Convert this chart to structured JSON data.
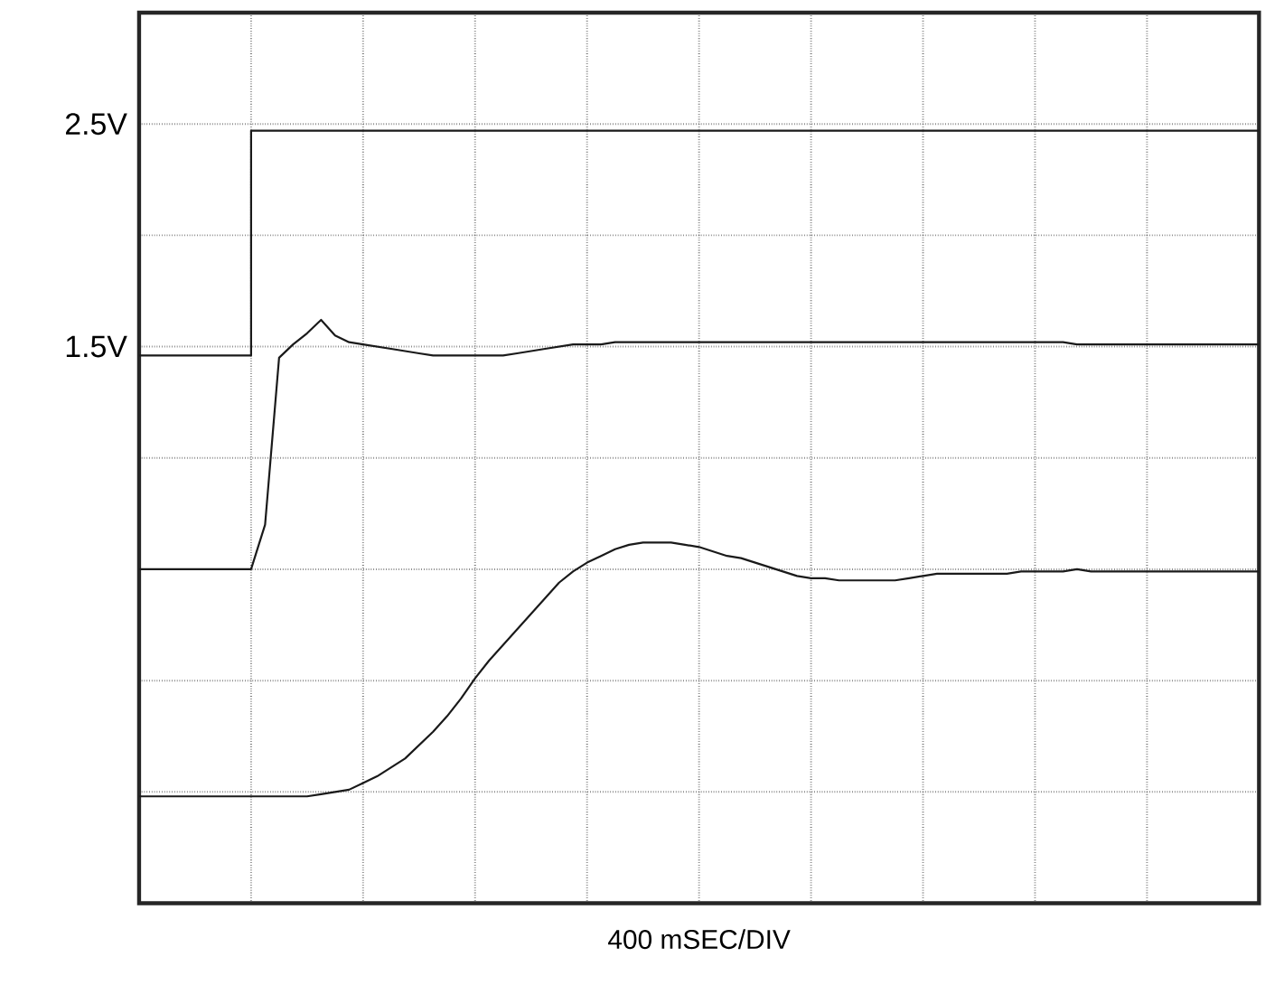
{
  "chart_data": {
    "type": "line",
    "xlabel": "400 mSEC/DIV",
    "ylim": [
      -1,
      3
    ],
    "categories": [
      null,
      null,
      null,
      null,
      null,
      null,
      null,
      null,
      null,
      null,
      null,
      null,
      null,
      null,
      null,
      null,
      null,
      null,
      null,
      null,
      null,
      null,
      null,
      null,
      null,
      null,
      null,
      null,
      null,
      null,
      null,
      null,
      null,
      null,
      null,
      null,
      null,
      null,
      null,
      null,
      null,
      null,
      null,
      null,
      null,
      null,
      null,
      null,
      null,
      null,
      null,
      null,
      null,
      null,
      null,
      null,
      null,
      null,
      null,
      null,
      null,
      null,
      null,
      null,
      null,
      null,
      null,
      null,
      null,
      null,
      null,
      null,
      null,
      null,
      null,
      null,
      null,
      null,
      null,
      null,
      null
    ],
    "yticks": [
      {
        "value": -1,
        "label": null
      },
      {
        "value": -0.5,
        "label": null
      },
      {
        "value": 0,
        "label": null
      },
      {
        "value": 0.5,
        "label": null
      },
      {
        "value": 1,
        "label": null
      },
      {
        "value": 1.5,
        "label": "1.5V"
      },
      {
        "value": 2,
        "label": null
      },
      {
        "value": 2.5,
        "label": "2.5V"
      },
      {
        "value": 3,
        "label": null
      }
    ],
    "tick_labels": "y",
    "grid": true,
    "series": [
      {
        "type": "step",
        "color": "#1a1a1a",
        "values": [
          1.46,
          1.46,
          1.46,
          1.46,
          1.46,
          1.46,
          1.46,
          1.46,
          2.47,
          2.47,
          2.47,
          2.47,
          2.47,
          2.47,
          2.47,
          2.47,
          2.47,
          2.47,
          2.47,
          2.47,
          2.47,
          2.47,
          2.47,
          2.47,
          2.47,
          2.47,
          2.47,
          2.47,
          2.47,
          2.47,
          2.47,
          2.47,
          2.47,
          2.47,
          2.47,
          2.47,
          2.47,
          2.47,
          2.47,
          2.47,
          2.47,
          2.47,
          2.47,
          2.47,
          2.47,
          2.47,
          2.47,
          2.47,
          2.47,
          2.47,
          2.47,
          2.47,
          2.47,
          2.47,
          2.47,
          2.47,
          2.47,
          2.47,
          2.47,
          2.47,
          2.47,
          2.47,
          2.47,
          2.47,
          2.47,
          2.47,
          2.47,
          2.47,
          2.47,
          2.47,
          2.47,
          2.47,
          2.47,
          2.47,
          2.47,
          2.47,
          2.47,
          2.47,
          2.47,
          2.47,
          2.47
        ]
      },
      {
        "color": "#1a1a1a",
        "values": [
          0.5,
          0.5,
          0.5,
          0.5,
          0.5,
          0.5,
          0.5,
          0.5,
          0.5,
          0.7,
          1.45,
          1.51,
          1.56,
          1.62,
          1.55,
          1.52,
          1.51,
          1.5,
          1.49,
          1.48,
          1.47,
          1.46,
          1.46,
          1.46,
          1.46,
          1.46,
          1.46,
          1.47,
          1.48,
          1.49,
          1.5,
          1.51,
          1.51,
          1.51,
          1.52,
          1.52,
          1.52,
          1.52,
          1.52,
          1.52,
          1.52,
          1.52,
          1.52,
          1.52,
          1.52,
          1.52,
          1.52,
          1.52,
          1.52,
          1.52,
          1.52,
          1.52,
          1.52,
          1.52,
          1.52,
          1.52,
          1.52,
          1.52,
          1.52,
          1.52,
          1.52,
          1.52,
          1.52,
          1.52,
          1.52,
          1.52,
          1.52,
          1.51,
          1.51,
          1.51,
          1.51,
          1.51,
          1.51,
          1.51,
          1.51,
          1.51,
          1.51,
          1.51,
          1.51,
          1.51,
          1.51
        ]
      },
      {
        "color": "#1a1a1a",
        "values": [
          -0.52,
          -0.52,
          -0.52,
          -0.52,
          -0.52,
          -0.52,
          -0.52,
          -0.52,
          -0.52,
          -0.52,
          -0.52,
          -0.52,
          -0.52,
          -0.51,
          -0.5,
          -0.49,
          -0.46,
          -0.43,
          -0.39,
          -0.35,
          -0.29,
          -0.23,
          -0.16,
          -0.08,
          0.01,
          0.09,
          0.16,
          0.23,
          0.3,
          0.37,
          0.44,
          0.49,
          0.53,
          0.56,
          0.59,
          0.61,
          0.62,
          0.62,
          0.62,
          0.61,
          0.6,
          0.58,
          0.56,
          0.55,
          0.53,
          0.51,
          0.49,
          0.47,
          0.46,
          0.46,
          0.45,
          0.45,
          0.45,
          0.45,
          0.45,
          0.46,
          0.47,
          0.48,
          0.48,
          0.48,
          0.48,
          0.48,
          0.48,
          0.49,
          0.49,
          0.49,
          0.49,
          0.5,
          0.49,
          0.49,
          0.49,
          0.49,
          0.49,
          0.49,
          0.49,
          0.49,
          0.49,
          0.49,
          0.49,
          0.49,
          0.49
        ]
      }
    ]
  }
}
